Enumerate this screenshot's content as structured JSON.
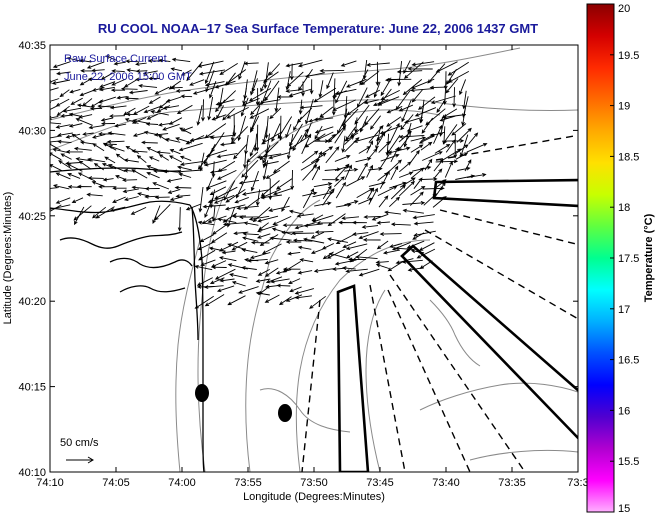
{
  "figure": {
    "title": "RU COOL  NOAA–17  Sea Surface Temperature:  June 22, 2006 1437 GMT",
    "x_label": "Longitude (Degrees:Minutes)",
    "y_label": "Latitude (Degrees:Minutes)",
    "x_ticks": [
      "74:10",
      "74:05",
      "74:00",
      "73:55",
      "73:50",
      "73:45",
      "73:40",
      "73:35",
      "73:3"
    ],
    "y_ticks": [
      "40:35",
      "40:30",
      "40:25",
      "40:20",
      "40:15",
      "40:10"
    ],
    "overlay_title": "Raw Surface Current",
    "overlay_time": "June 22, 2006 15:00 GMT",
    "scale_label": "50 cm/s"
  },
  "colorbar": {
    "label": "Temperature (°C)",
    "ticks": [
      "20",
      "19.5",
      "19",
      "18.5",
      "18",
      "17.5",
      "17",
      "16.5",
      "16",
      "15.5",
      "15"
    ],
    "colors": [
      "#8b0000",
      "#d40000",
      "#ff2a00",
      "#ff6a00",
      "#ffaa00",
      "#ffe000",
      "#c8ff00",
      "#60ff40",
      "#00ff90",
      "#00ffff",
      "#00b0ff",
      "#0050ff",
      "#0000ff",
      "#5000d0",
      "#b000d0",
      "#ff00ff",
      "#ffb0ff"
    ]
  },
  "map": {
    "vector_color": "#000000",
    "coast_color": "#000000",
    "contour_color": "#8a8a8a"
  }
}
